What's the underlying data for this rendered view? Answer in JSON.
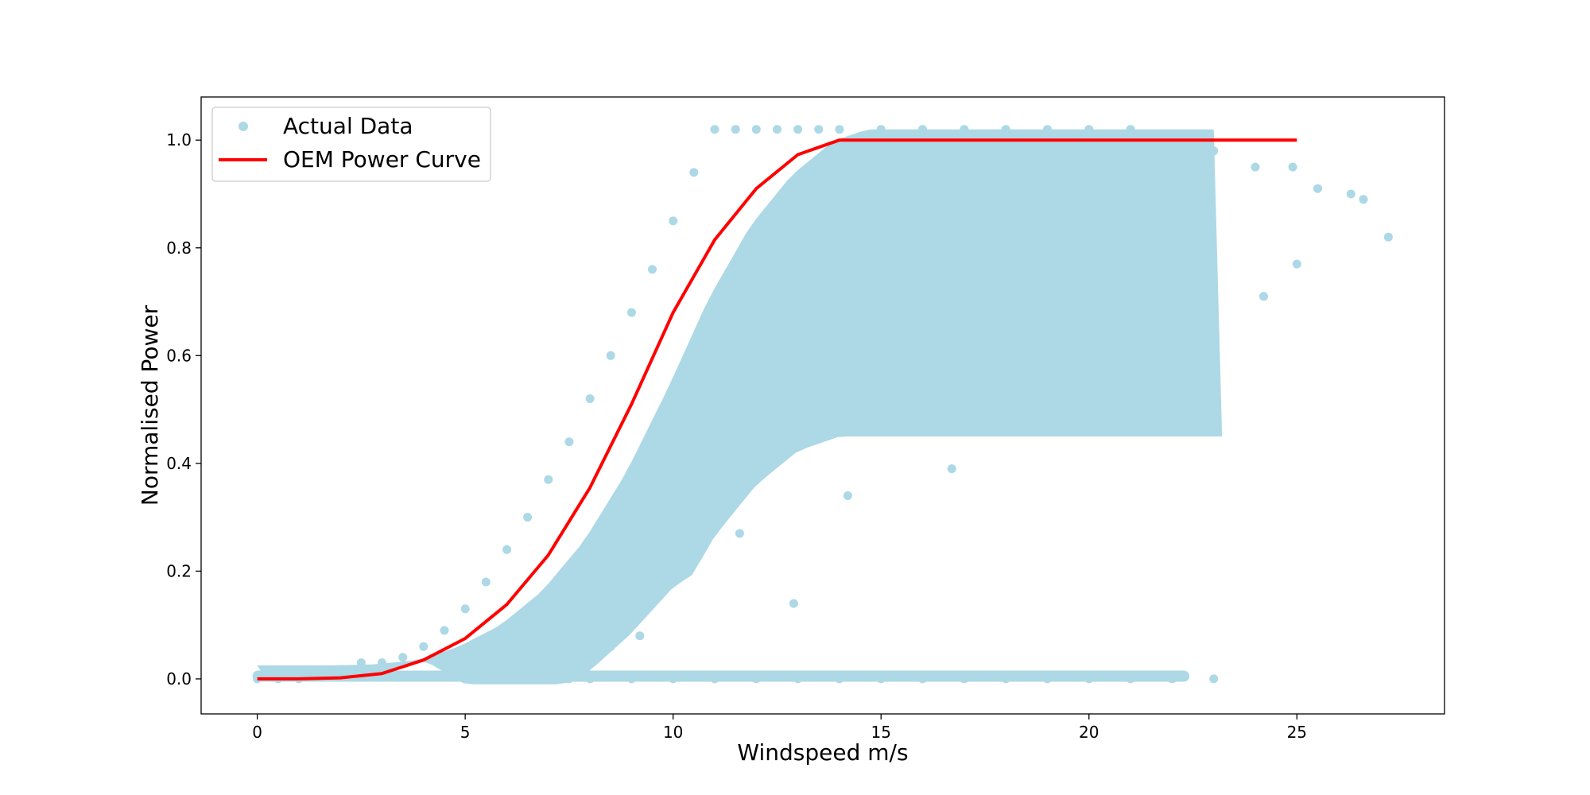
{
  "chart_data": {
    "type": "scatter",
    "title": "",
    "xlabel": "Windspeed m/s",
    "ylabel": "Normalised Power",
    "xlim": [
      -1.35,
      28.55
    ],
    "ylim": [
      -0.065,
      1.08
    ],
    "x_ticks": [
      0,
      5,
      10,
      15,
      20,
      25
    ],
    "y_ticks": [
      0.0,
      0.2,
      0.4,
      0.6,
      0.8,
      1.0
    ],
    "x_tick_labels": [
      "0",
      "5",
      "10",
      "15",
      "20",
      "25"
    ],
    "y_tick_labels": [
      "0.0",
      "0.2",
      "0.4",
      "0.6",
      "0.8",
      "1.0"
    ],
    "grid": false,
    "legend_position": "top-left",
    "series": [
      {
        "name": "Actual Data",
        "kind": "scatter",
        "color": "#add8e6",
        "x": [
          0.0,
          0.5,
          1.0,
          2.0,
          2.5,
          3.0,
          3.5,
          4.0,
          4.5,
          5.0,
          5.5,
          6.0,
          6.5,
          7.0,
          7.5,
          8.0,
          8.5,
          9.0,
          9.5,
          10.0,
          10.5,
          11.0,
          11.5,
          12.0,
          12.5,
          13.0,
          13.5,
          14.0,
          15.0,
          16.0,
          17.0,
          18.0,
          19.0,
          20.0,
          21.0,
          22.0,
          22.3,
          23.0,
          24.0,
          24.9,
          25.5,
          26.3,
          26.6,
          27.2,
          7.5,
          8.0,
          9.0,
          10.0,
          11.0,
          12.0,
          13.0,
          14.0,
          15.0,
          16.0,
          17.0,
          18.0,
          19.0,
          20.0,
          21.0,
          22.0,
          23.0,
          12.9,
          8.5,
          9.2,
          10.3,
          11.6,
          14.2,
          16.7,
          19.4,
          20.5,
          21.8,
          22.6,
          24.2,
          25.0
        ],
        "y": [
          0.0,
          0.0,
          0.0,
          0.01,
          0.03,
          0.03,
          0.04,
          0.06,
          0.09,
          0.13,
          0.18,
          0.24,
          0.3,
          0.37,
          0.44,
          0.52,
          0.6,
          0.68,
          0.76,
          0.85,
          0.94,
          1.02,
          1.02,
          1.02,
          1.02,
          1.02,
          1.02,
          1.02,
          1.02,
          1.02,
          1.02,
          1.02,
          1.02,
          1.02,
          1.02,
          1.0,
          0.98,
          0.98,
          0.95,
          0.95,
          0.91,
          0.9,
          0.89,
          0.82,
          0.0,
          0.0,
          0.0,
          0.0,
          0.0,
          0.0,
          0.0,
          0.0,
          0.0,
          0.0,
          0.0,
          0.0,
          0.0,
          0.0,
          0.0,
          0.0,
          0.0,
          0.14,
          0.06,
          0.08,
          0.2,
          0.27,
          0.34,
          0.39,
          0.48,
          0.5,
          0.53,
          0.57,
          0.71,
          0.77
        ]
      },
      {
        "name": "OEM Power Curve",
        "kind": "line",
        "color": "#ff0000",
        "x": [
          0,
          1,
          2,
          3,
          4,
          5,
          6,
          7,
          8,
          9,
          10,
          11,
          12,
          13,
          14,
          15,
          16,
          17,
          18,
          19,
          20,
          21,
          22,
          23,
          24,
          25
        ],
        "y": [
          0.0,
          0.0,
          0.002,
          0.01,
          0.035,
          0.075,
          0.138,
          0.23,
          0.355,
          0.51,
          0.68,
          0.815,
          0.91,
          0.973,
          1.0,
          1.0,
          1.0,
          1.0,
          1.0,
          1.0,
          1.0,
          1.0,
          1.0,
          1.0,
          1.0,
          1.0
        ]
      }
    ]
  }
}
